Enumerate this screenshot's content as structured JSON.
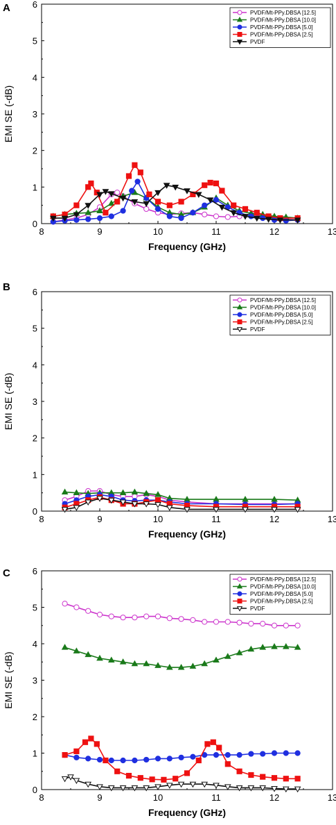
{
  "figure": {
    "panels": [
      "A",
      "B",
      "C"
    ],
    "legend_labels": [
      "PVDF/Mt-PPy.DBSA [12.5]",
      "PVDF/Mt-PPy.DBSA [10.0]",
      "PVDF/Mt-PPy.DBSA [5.0]",
      "PVDF/Mt-PPy.DBSA  [2.5]",
      "PVDF"
    ]
  },
  "colors": {
    "s12_5": "#cc33cc",
    "s10_0": "#1a7a1a",
    "s5_0": "#1f2fe0",
    "s2_5": "#ee1111",
    "pvdf": "#111111"
  },
  "chart_data": [
    {
      "panel": "A",
      "type": "line",
      "xlabel": "Frequency (GHz)",
      "ylabel": "EMI SE (-dB)",
      "xlim": [
        8,
        13
      ],
      "ylim": [
        0,
        6
      ],
      "xticks": [
        8,
        9,
        10,
        11,
        12,
        13
      ],
      "yticks": [
        0,
        1,
        2,
        3,
        4,
        5,
        6
      ],
      "legend_position": "top-right",
      "series": [
        {
          "name": "PVDF/Mt-PPy.DBSA [12.5]",
          "marker": "circle-open",
          "color": "#cc33cc",
          "x": [
            8.2,
            8.4,
            8.6,
            8.8,
            9.0,
            9.2,
            9.3,
            9.4,
            9.6,
            9.8,
            10.0,
            10.2,
            10.4,
            10.6,
            10.8,
            11.0,
            11.2,
            11.4,
            11.6,
            11.8,
            12.0,
            12.2,
            12.4
          ],
          "y": [
            0.05,
            0.1,
            0.15,
            0.25,
            0.45,
            0.8,
            0.85,
            0.75,
            0.55,
            0.4,
            0.3,
            0.25,
            0.28,
            0.3,
            0.25,
            0.2,
            0.18,
            0.2,
            0.25,
            0.2,
            0.15,
            0.12,
            0.1
          ]
        },
        {
          "name": "PVDF/Mt-PPy.DBSA [10.0]",
          "marker": "triangle-up-filled",
          "color": "#1a7a1a",
          "x": [
            8.2,
            8.4,
            8.6,
            8.8,
            9.0,
            9.2,
            9.4,
            9.6,
            9.8,
            10.0,
            10.2,
            10.4,
            10.6,
            10.8,
            11.0,
            11.2,
            11.4,
            11.6,
            11.8,
            12.0,
            12.2,
            12.4
          ],
          "y": [
            0.2,
            0.25,
            0.28,
            0.3,
            0.35,
            0.55,
            0.75,
            0.85,
            0.7,
            0.45,
            0.3,
            0.25,
            0.3,
            0.45,
            0.7,
            0.5,
            0.35,
            0.28,
            0.25,
            0.2,
            0.18,
            0.15
          ]
        },
        {
          "name": "PVDF/Mt-PPy.DBSA [5.0]",
          "marker": "circle-filled",
          "color": "#1f2fe0",
          "x": [
            8.2,
            8.4,
            8.6,
            8.8,
            9.0,
            9.2,
            9.4,
            9.55,
            9.65,
            9.8,
            10.0,
            10.2,
            10.4,
            10.6,
            10.8,
            11.0,
            11.2,
            11.4,
            11.6,
            11.8,
            12.0,
            12.2,
            12.4
          ],
          "y": [
            0.05,
            0.08,
            0.1,
            0.12,
            0.15,
            0.2,
            0.35,
            0.9,
            1.15,
            0.7,
            0.4,
            0.2,
            0.15,
            0.3,
            0.5,
            0.65,
            0.45,
            0.3,
            0.2,
            0.15,
            0.1,
            0.08,
            0.1
          ]
        },
        {
          "name": "PVDF/Mt-PPy.DBSA  [2.5]",
          "marker": "square-filled",
          "color": "#ee1111",
          "x": [
            8.2,
            8.4,
            8.6,
            8.8,
            8.85,
            8.95,
            9.1,
            9.3,
            9.5,
            9.6,
            9.7,
            9.85,
            10.0,
            10.2,
            10.4,
            10.6,
            10.8,
            10.9,
            11.0,
            11.1,
            11.3,
            11.5,
            11.7,
            11.9,
            12.1,
            12.4
          ],
          "y": [
            0.2,
            0.25,
            0.5,
            1.0,
            1.1,
            0.85,
            0.3,
            0.6,
            1.3,
            1.6,
            1.4,
            0.8,
            0.6,
            0.5,
            0.6,
            0.8,
            1.05,
            1.12,
            1.1,
            0.9,
            0.5,
            0.4,
            0.3,
            0.2,
            0.15,
            0.15
          ]
        },
        {
          "name": "PVDF",
          "marker": "triangle-down-filled",
          "color": "#111111",
          "x": [
            8.2,
            8.4,
            8.6,
            8.8,
            9.0,
            9.1,
            9.2,
            9.4,
            9.6,
            9.8,
            10.0,
            10.15,
            10.3,
            10.5,
            10.7,
            10.9,
            11.1,
            11.3,
            11.5,
            11.7,
            11.9,
            12.1,
            12.4
          ],
          "y": [
            0.15,
            0.15,
            0.25,
            0.5,
            0.8,
            0.88,
            0.82,
            0.7,
            0.6,
            0.55,
            0.85,
            1.05,
            1.0,
            0.9,
            0.8,
            0.65,
            0.45,
            0.3,
            0.2,
            0.15,
            0.12,
            0.1,
            0.1
          ]
        }
      ]
    },
    {
      "panel": "B",
      "type": "line",
      "xlabel": "Frequency (GHz)",
      "ylabel": "EMI SE (-dB)",
      "xlim": [
        8,
        13
      ],
      "ylim": [
        0,
        6
      ],
      "xticks": [
        8,
        9,
        10,
        11,
        12,
        13
      ],
      "yticks": [
        0,
        1,
        2,
        3,
        4,
        5,
        6
      ],
      "legend_position": "top-right",
      "series": [
        {
          "name": "PVDF/Mt-PPy.DBSA [12.5]",
          "marker": "circle-open",
          "color": "#cc33cc",
          "x": [
            8.4,
            8.6,
            8.8,
            9.0,
            9.2,
            9.4,
            9.6,
            9.8,
            10.0,
            10.2,
            10.5,
            11.0,
            11.5,
            12.0,
            12.4
          ],
          "y": [
            0.3,
            0.4,
            0.55,
            0.55,
            0.45,
            0.4,
            0.4,
            0.45,
            0.4,
            0.3,
            0.25,
            0.2,
            0.2,
            0.2,
            0.2
          ]
        },
        {
          "name": "PVDF/Mt-PPy.DBSA [10.0]",
          "marker": "triangle-up-filled",
          "color": "#1a7a1a",
          "x": [
            8.4,
            8.6,
            8.8,
            9.0,
            9.2,
            9.4,
            9.6,
            9.8,
            10.0,
            10.2,
            10.5,
            11.0,
            11.5,
            12.0,
            12.4
          ],
          "y": [
            0.52,
            0.5,
            0.48,
            0.5,
            0.5,
            0.5,
            0.52,
            0.48,
            0.45,
            0.35,
            0.32,
            0.32,
            0.32,
            0.32,
            0.3
          ]
        },
        {
          "name": "PVDF/Mt-PPy.DBSA [5.0]",
          "marker": "circle-filled",
          "color": "#1f2fe0",
          "x": [
            8.4,
            8.6,
            8.8,
            9.0,
            9.2,
            9.4,
            9.6,
            9.8,
            10.0,
            10.2,
            10.5,
            11.0,
            11.5,
            12.0,
            12.4
          ],
          "y": [
            0.2,
            0.3,
            0.4,
            0.45,
            0.4,
            0.3,
            0.28,
            0.3,
            0.3,
            0.25,
            0.2,
            0.2,
            0.18,
            0.18,
            0.2
          ]
        },
        {
          "name": "PVDF/Mt-PPy.DBSA  [2.5]",
          "marker": "square-filled",
          "color": "#ee1111",
          "x": [
            8.4,
            8.6,
            8.8,
            9.0,
            9.2,
            9.4,
            9.6,
            9.8,
            10.0,
            10.2,
            10.5,
            11.0,
            11.5,
            12.0,
            12.4
          ],
          "y": [
            0.1,
            0.2,
            0.3,
            0.38,
            0.3,
            0.2,
            0.2,
            0.25,
            0.3,
            0.2,
            0.15,
            0.12,
            0.12,
            0.12,
            0.12
          ]
        },
        {
          "name": "PVDF",
          "marker": "triangle-down-open",
          "color": "#111111",
          "x": [
            8.4,
            8.6,
            8.8,
            9.0,
            9.2,
            9.4,
            9.6,
            9.8,
            10.0,
            10.2,
            10.5,
            11.0,
            11.5,
            12.0,
            12.4
          ],
          "y": [
            0.05,
            0.1,
            0.25,
            0.35,
            0.3,
            0.25,
            0.2,
            0.2,
            0.18,
            0.1,
            0.05,
            0.05,
            0.05,
            0.05,
            0.05
          ]
        }
      ]
    },
    {
      "panel": "C",
      "type": "line",
      "xlabel": "Frequency (GHz)",
      "ylabel": "EMI SE (-dB)",
      "xlim": [
        8,
        13
      ],
      "ylim": [
        0,
        6
      ],
      "xticks": [
        8,
        9,
        10,
        11,
        12,
        13
      ],
      "yticks": [
        0,
        1,
        2,
        3,
        4,
        5,
        6
      ],
      "legend_position": "top-right",
      "series": [
        {
          "name": "PVDF/Mt-PPy.DBSA [12.5]",
          "marker": "circle-open",
          "color": "#cc33cc",
          "x": [
            8.4,
            8.6,
            8.8,
            9.0,
            9.2,
            9.4,
            9.6,
            9.8,
            10.0,
            10.2,
            10.4,
            10.6,
            10.8,
            11.0,
            11.2,
            11.4,
            11.6,
            11.8,
            12.0,
            12.2,
            12.4
          ],
          "y": [
            5.1,
            5.0,
            4.9,
            4.8,
            4.75,
            4.72,
            4.72,
            4.75,
            4.75,
            4.7,
            4.68,
            4.65,
            4.6,
            4.6,
            4.6,
            4.58,
            4.55,
            4.55,
            4.5,
            4.5,
            4.5
          ]
        },
        {
          "name": "PVDF/Mt-PPy.DBSA [10.0]",
          "marker": "triangle-up-filled",
          "color": "#1a7a1a",
          "x": [
            8.4,
            8.6,
            8.8,
            9.0,
            9.2,
            9.4,
            9.6,
            9.8,
            10.0,
            10.2,
            10.4,
            10.6,
            10.8,
            11.0,
            11.2,
            11.4,
            11.6,
            11.8,
            12.0,
            12.2,
            12.4
          ],
          "y": [
            3.9,
            3.8,
            3.7,
            3.6,
            3.55,
            3.5,
            3.45,
            3.45,
            3.4,
            3.35,
            3.35,
            3.38,
            3.45,
            3.55,
            3.65,
            3.75,
            3.85,
            3.9,
            3.92,
            3.92,
            3.9
          ]
        },
        {
          "name": "PVDF/Mt-PPy.DBSA [5.0]",
          "marker": "circle-filled",
          "color": "#1f2fe0",
          "x": [
            8.4,
            8.6,
            8.8,
            9.0,
            9.2,
            9.4,
            9.6,
            9.8,
            10.0,
            10.2,
            10.4,
            10.6,
            10.8,
            11.0,
            11.2,
            11.4,
            11.6,
            11.8,
            12.0,
            12.2,
            12.4
          ],
          "y": [
            0.95,
            0.88,
            0.85,
            0.82,
            0.8,
            0.8,
            0.8,
            0.82,
            0.85,
            0.85,
            0.88,
            0.9,
            0.95,
            0.95,
            0.95,
            0.95,
            0.98,
            0.98,
            1.0,
            1.0,
            1.0
          ]
        },
        {
          "name": "PVDF/Mt-PPy.DBSA  [2.5]",
          "marker": "square-filled",
          "color": "#ee1111",
          "x": [
            8.4,
            8.6,
            8.75,
            8.85,
            8.95,
            9.1,
            9.3,
            9.5,
            9.7,
            9.9,
            10.1,
            10.3,
            10.5,
            10.7,
            10.85,
            10.95,
            11.05,
            11.2,
            11.4,
            11.6,
            11.8,
            12.0,
            12.2,
            12.4
          ],
          "y": [
            0.95,
            1.05,
            1.3,
            1.4,
            1.25,
            0.8,
            0.5,
            0.38,
            0.32,
            0.28,
            0.27,
            0.3,
            0.45,
            0.8,
            1.25,
            1.3,
            1.15,
            0.7,
            0.5,
            0.4,
            0.35,
            0.32,
            0.3,
            0.3
          ]
        },
        {
          "name": "PVDF",
          "marker": "triangle-down-open",
          "color": "#111111",
          "x": [
            8.4,
            8.5,
            8.6,
            8.8,
            9.0,
            9.2,
            9.4,
            9.6,
            9.8,
            10.0,
            10.2,
            10.4,
            10.6,
            10.8,
            11.0,
            11.2,
            11.4,
            11.6,
            11.8,
            12.0,
            12.2,
            12.4
          ],
          "y": [
            0.3,
            0.35,
            0.25,
            0.15,
            0.08,
            0.05,
            0.05,
            0.05,
            0.05,
            0.08,
            0.12,
            0.15,
            0.15,
            0.15,
            0.12,
            0.08,
            0.05,
            0.05,
            0.05,
            0.03,
            0.02,
            0.02
          ]
        }
      ]
    }
  ]
}
